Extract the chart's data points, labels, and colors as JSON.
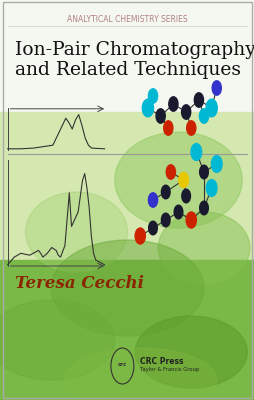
{
  "title_series": "ANALYTICAL CHEMISTRY SERIES",
  "title_main_line1": "Ion-Pair Chromatography",
  "title_main_line2": "and Related Techniques",
  "author": "Teresa Cecchi",
  "publisher": "CRC Press",
  "publisher_sub": "Taylor & Francis Group",
  "bg_color_top": "#f5f8f0",
  "bg_color_mid": "#d4e8b0",
  "bg_color_bottom": "#7ab848",
  "series_color": "#b08080",
  "title_color": "#111111",
  "author_color": "#8B2500",
  "border_color": "#aaaaaa",
  "line_color": "#333333",
  "figsize": [
    2.55,
    4.0
  ],
  "dpi": 100
}
